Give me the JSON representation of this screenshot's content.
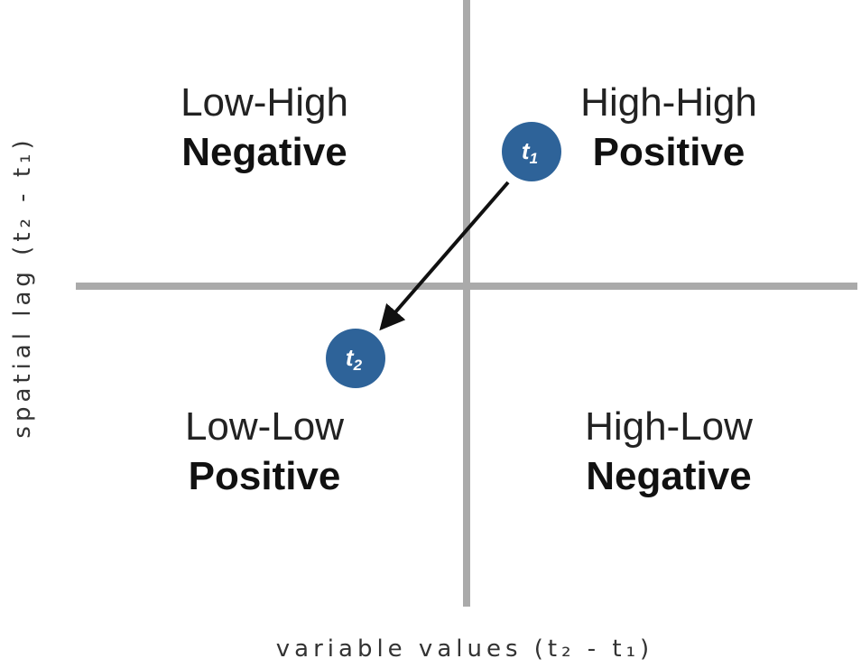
{
  "quadrants": {
    "top_left": {
      "line1": "Low-High",
      "line2": "Negative"
    },
    "top_right": {
      "line1": "High-High",
      "line2": "Positive"
    },
    "bottom_left": {
      "line1": "Low-Low",
      "line2": "Positive"
    },
    "bottom_right": {
      "line1": "High-Low",
      "line2": "Negative"
    }
  },
  "axes": {
    "x_title": "variable values (t₂ - t₁)",
    "y_title": "spatial lag (t₂ - t₁)"
  },
  "nodes": {
    "t1": {
      "label": "t",
      "sub": "1"
    },
    "t2": {
      "label": "t",
      "sub": "2"
    }
  },
  "colors": {
    "axis": "#aaaaaa",
    "node_fill": "#2e6399",
    "arrow": "#111111"
  }
}
